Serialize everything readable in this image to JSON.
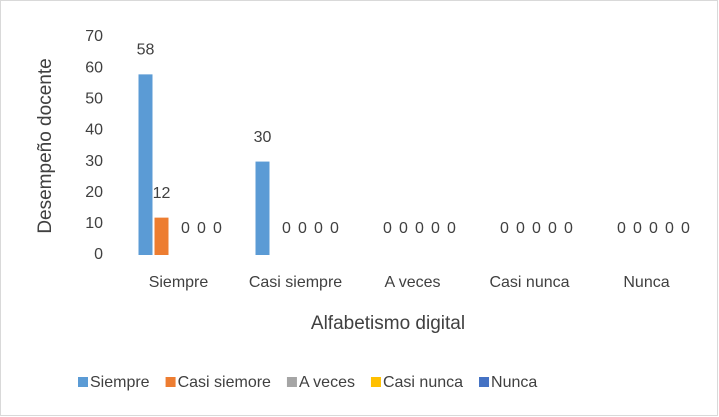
{
  "chart_data": {
    "type": "bar",
    "x_label": "Alfabetismo digital",
    "y_label": "Desempeño docente",
    "categories": [
      "Siempre",
      "Casi siempre",
      "A veces",
      "Casi nunca",
      "Nunca"
    ],
    "series": [
      {
        "name": "Siempre",
        "color": "#5b9bd5",
        "values": [
          58,
          30,
          0,
          0,
          0
        ]
      },
      {
        "name": "Casi siemore",
        "color": "#ed7d31",
        "values": [
          12,
          0,
          0,
          0,
          0
        ]
      },
      {
        "name": "A veces",
        "color": "#a5a5a5",
        "values": [
          0,
          0,
          0,
          0,
          0
        ]
      },
      {
        "name": "Casi nunca",
        "color": "#ffc000",
        "values": [
          0,
          0,
          0,
          0,
          0
        ]
      },
      {
        "name": "Nunca",
        "color": "#4472c4",
        "values": [
          0,
          0,
          0,
          0,
          0
        ]
      }
    ],
    "ylim": [
      0,
      70
    ],
    "yticks": [
      0,
      10,
      20,
      30,
      40,
      50,
      60,
      70
    ],
    "grid": false,
    "legend": "bottom"
  }
}
